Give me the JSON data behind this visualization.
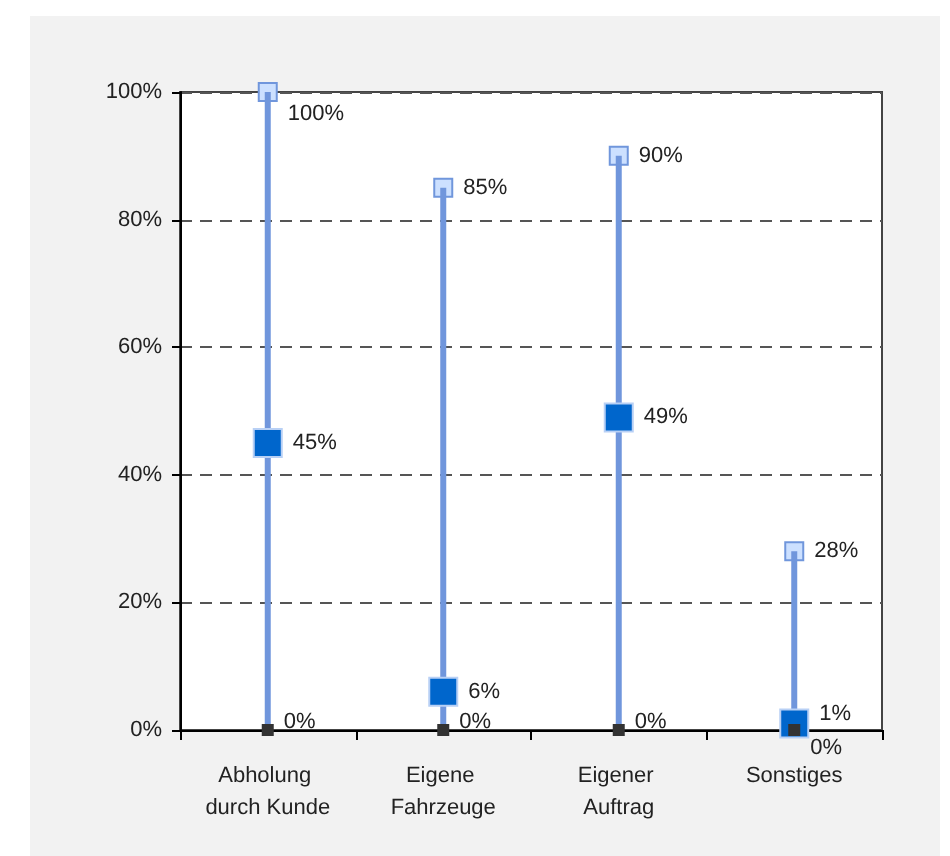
{
  "chart_data": {
    "type": "scatter",
    "categories": [
      "Abholung durch Kunde",
      "Eigene Fahrzeuge",
      "Eigener Auftrag",
      "Sonstiges"
    ],
    "series": [
      {
        "type": "bar",
        "color": "#7096dc",
        "values": [
          100,
          85,
          90,
          28
        ]
      },
      {
        "color": "#cce0ff",
        "values": [
          100,
          85,
          90,
          28
        ],
        "value_labels": [
          "100%",
          "85%",
          "90%",
          "28%"
        ]
      },
      {
        "color": "#0066cc",
        "values": [
          45,
          6,
          49,
          1
        ],
        "value_labels": [
          "45%",
          "6%",
          "49%",
          "1%"
        ]
      },
      {
        "color": "#333333",
        "values": [
          0,
          0,
          0,
          0
        ],
        "value_labels": [
          "0%",
          "0%",
          "0%",
          "0%"
        ]
      }
    ],
    "ylim": [
      0,
      100
    ],
    "yticks": [
      {
        "value": 0,
        "label": "0%"
      },
      {
        "value": 20,
        "label": "20%"
      },
      {
        "value": 40,
        "label": "40%"
      },
      {
        "value": 60,
        "label": "60%"
      },
      {
        "value": 80,
        "label": "80%"
      },
      {
        "value": 100,
        "label": "100%"
      }
    ],
    "grid": "y",
    "marker": "square"
  }
}
